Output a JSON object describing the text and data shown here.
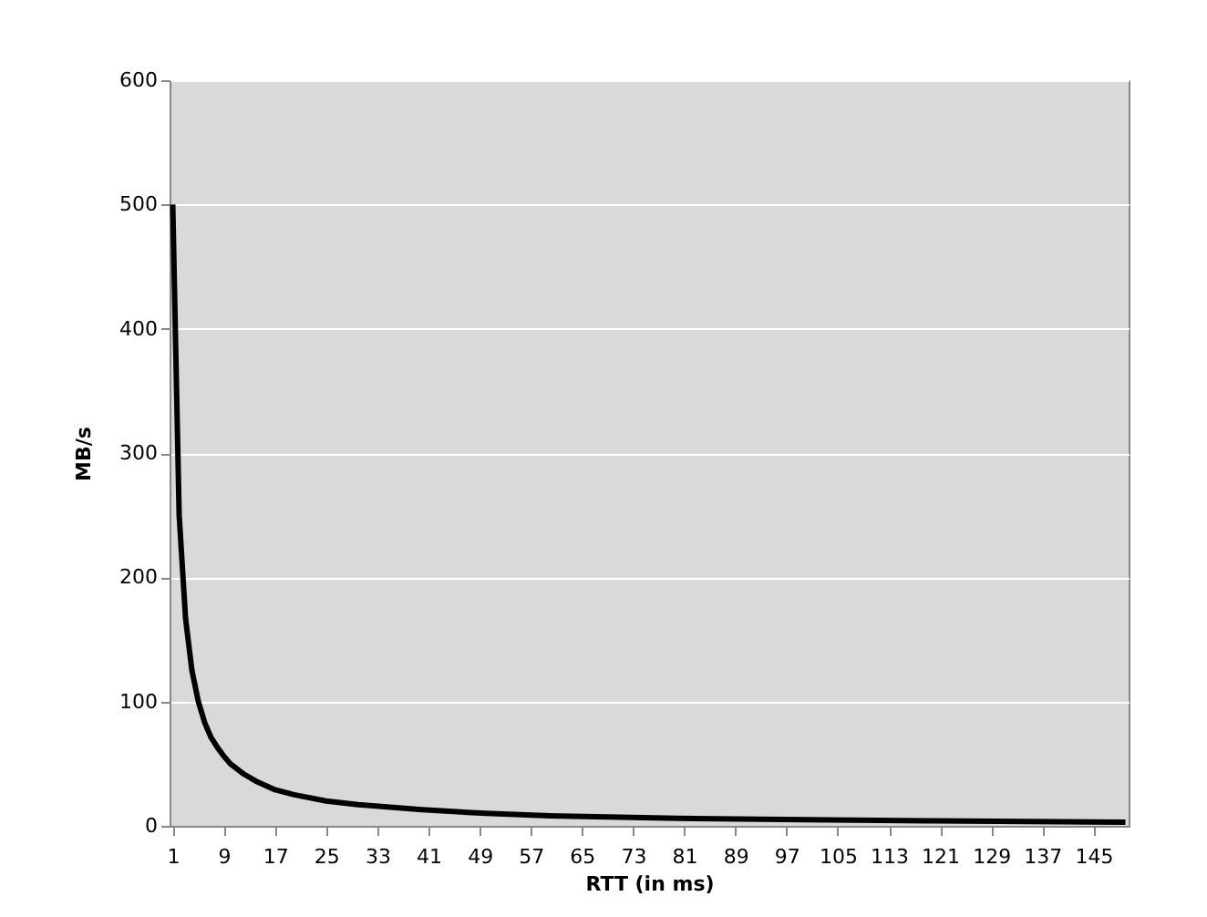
{
  "chart_data": {
    "type": "line",
    "xlabel": "RTT (in ms)",
    "ylabel": "MB/s",
    "x": [
      1,
      2,
      3,
      4,
      5,
      6,
      7,
      8,
      9,
      10,
      12,
      14,
      17,
      20,
      25,
      30,
      40,
      50,
      60,
      80,
      100,
      120,
      150
    ],
    "series": [
      {
        "color": "#000000",
        "values": [
          500,
          250,
          167,
          125,
          100,
          83,
          71,
          63,
          56,
          50,
          42,
          36,
          29,
          25,
          20,
          17,
          13,
          10,
          8,
          6,
          5,
          4,
          3
        ]
      }
    ],
    "xlim": [
      0.5,
      150.5
    ],
    "xticks": [
      1,
      9,
      17,
      25,
      33,
      41,
      49,
      57,
      65,
      73,
      81,
      89,
      97,
      105,
      113,
      121,
      129,
      137,
      145
    ],
    "ylim": [
      0,
      600
    ],
    "yticks": [
      0,
      100,
      200,
      300,
      400,
      500,
      600
    ],
    "grid": "y",
    "marker": "none",
    "line_style": "solid"
  }
}
